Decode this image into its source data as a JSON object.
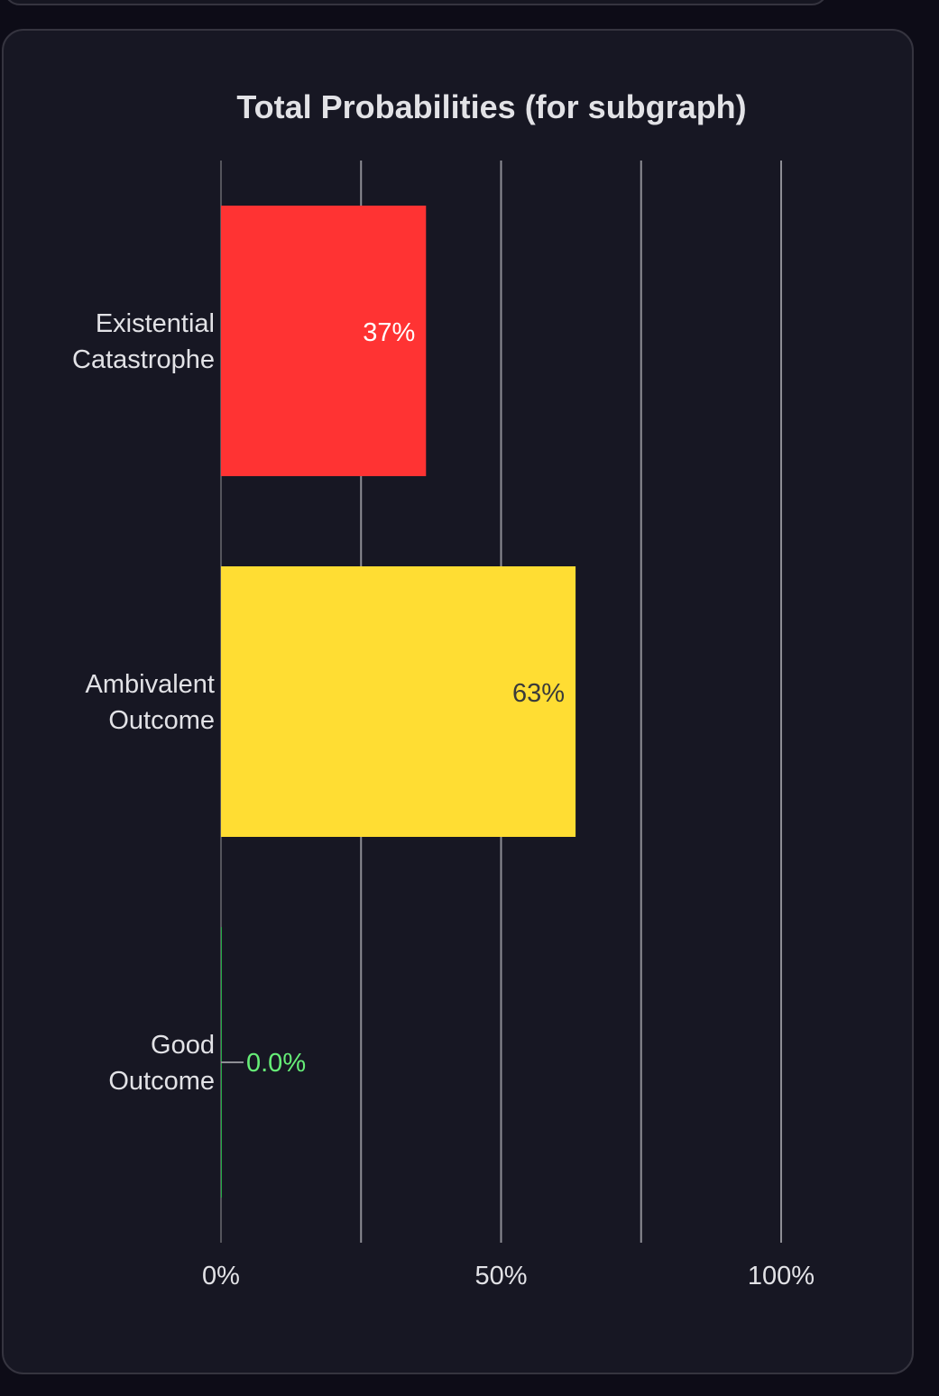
{
  "chart_data": {
    "type": "bar",
    "orientation": "horizontal",
    "title": "Total Probabilities (for subgraph)",
    "xlabel": "",
    "ylabel": "",
    "xlim": [
      0,
      100
    ],
    "x_unit": "%",
    "x_ticks": [
      {
        "value": 0,
        "label": "0%"
      },
      {
        "value": 50,
        "label": "50%"
      },
      {
        "value": 100,
        "label": "100%"
      }
    ],
    "gridlines_at": [
      0,
      25,
      50,
      75,
      100
    ],
    "grid": true,
    "legend": "none",
    "categories": [
      {
        "lines": [
          "Existential",
          "Catastrophe"
        ],
        "value": 36.6,
        "label": "37%",
        "color": "#ff3333",
        "label_color": "#ffffff",
        "label_position": "inside-end"
      },
      {
        "lines": [
          "Ambivalent",
          "Outcome"
        ],
        "value": 63.3,
        "label": "63%",
        "color": "#ffdd33",
        "label_color": "#3a3a3a",
        "label_position": "inside-end"
      },
      {
        "lines": [
          "Good",
          "Outcome"
        ],
        "value": 0.0,
        "label": "0.0%",
        "color": "#22aa44",
        "label_color": "#66ee77",
        "label_position": "outside-leader"
      }
    ]
  },
  "colors": {
    "background": "#0d0c17",
    "card": "#171723",
    "card_border": "#35343f",
    "text": "#e2e2e6",
    "grid": "#8e8e95"
  }
}
